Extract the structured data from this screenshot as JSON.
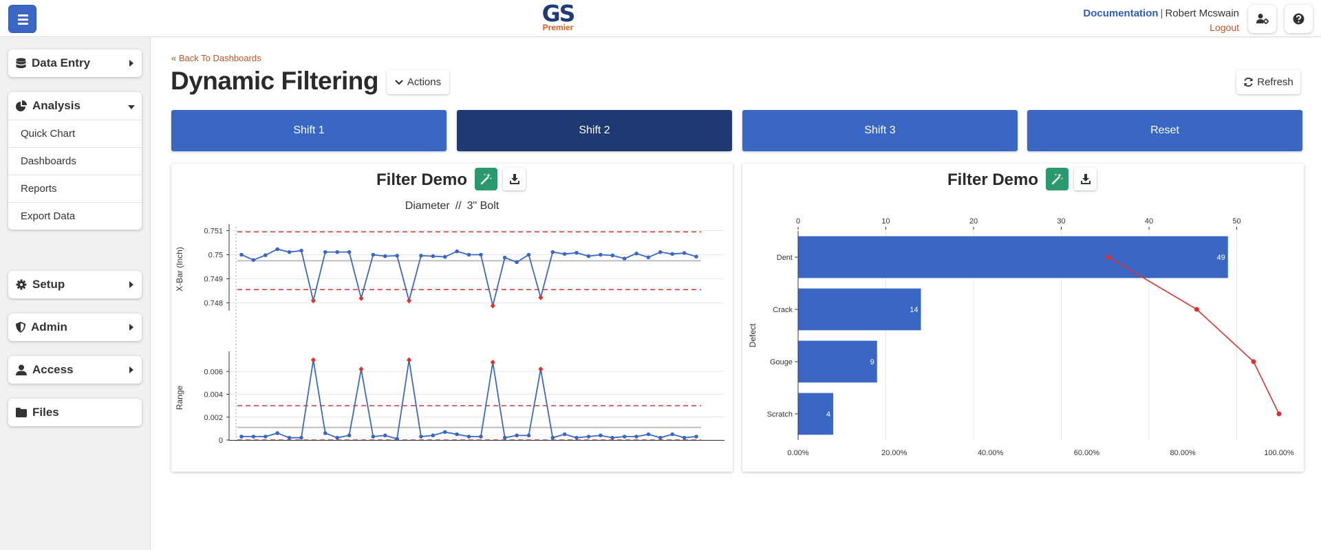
{
  "header": {
    "logo_main": "GS",
    "logo_sub": "Premier",
    "documentation": "Documentation",
    "user_name": "Robert Mcswain",
    "logout": "Logout",
    "icons": [
      "bars-icon",
      "user-gear-icon",
      "question-icon"
    ]
  },
  "sidebar": {
    "data_entry": "Data Entry",
    "analysis": "Analysis",
    "analysis_items": [
      "Quick Chart",
      "Dashboards",
      "Reports",
      "Export Data"
    ],
    "setup": "Setup",
    "admin": "Admin",
    "access": "Access",
    "files": "Files"
  },
  "page": {
    "back_link": "Back To Dashboards",
    "title": "Dynamic Filtering",
    "actions_label": "Actions",
    "refresh_label": "Refresh"
  },
  "filters": {
    "buttons": [
      "Shift 1",
      "Shift 2",
      "Shift 3",
      "Reset"
    ],
    "active": "Shift 2"
  },
  "colors": {
    "primary": "#3a67c4",
    "active_button": "#1f3a73",
    "series": "#3a67c4",
    "limit_line": "#e03030",
    "magic_button": "#2a9a6e"
  },
  "panels": {
    "left_title": "Filter Demo",
    "right_title": "Filter Demo"
  },
  "chart_data": [
    {
      "type": "line",
      "name": "xbar-range-control-chart",
      "subtitle_part1": "Diameter",
      "subtitle_sep": "//",
      "subtitle_part2": "3\" Bolt",
      "xbar": {
        "ylabel": "X-Bar (Inch)",
        "ylim": [
          0.7477,
          0.7511
        ],
        "yticks": [
          0.748,
          0.749,
          0.75,
          0.751
        ],
        "ytick_labels": [
          "0.748",
          "0.749",
          "0.75",
          "0.751"
        ],
        "ucl": 0.75095,
        "lcl": 0.74855,
        "center": 0.74975,
        "values": [
          0.75,
          0.74978,
          0.74998,
          0.75023,
          0.75011,
          0.75017,
          0.74809,
          0.75011,
          0.75011,
          0.75011,
          0.74819,
          0.75,
          0.74994,
          0.74996,
          0.74809,
          0.74996,
          0.74994,
          0.74991,
          0.75014,
          0.75,
          0.75,
          0.74788,
          0.74988,
          0.74969,
          0.75,
          0.74822,
          0.75011,
          0.75003,
          0.75008,
          0.74994,
          0.75,
          0.74997,
          0.74984,
          0.75005,
          0.74989,
          0.75011,
          0.75003,
          0.75007,
          0.74992
        ],
        "out_of_control": [
          6,
          10,
          14,
          21,
          25
        ]
      },
      "range": {
        "ylabel": "Range",
        "ylim": [
          0,
          0.0074
        ],
        "yticks": [
          0,
          0.002,
          0.004,
          0.006
        ],
        "ytick_labels": [
          "0",
          "0.002",
          "0.004",
          "0.006"
        ],
        "ucl": 0.003,
        "lcl": 0,
        "center": 0.0011,
        "values": [
          0.0003,
          0.0003,
          0.0003,
          0.0006,
          0.0002,
          0.0002,
          0.007,
          0.0006,
          0.0002,
          0.0004,
          0.0062,
          0.0003,
          0.0004,
          0.0001,
          0.007,
          0.0003,
          0.0004,
          0.0007,
          0.0005,
          0.0003,
          0.0003,
          0.0068,
          0.0002,
          0.0004,
          0.0004,
          0.0062,
          0.0002,
          0.0005,
          0.0002,
          0.0003,
          0.0004,
          0.0002,
          0.0003,
          0.0003,
          0.0005,
          0.0002,
          0.0005,
          0.0002,
          0.0003
        ],
        "out_of_control": [
          6,
          10,
          14,
          21,
          25
        ]
      }
    },
    {
      "type": "bar",
      "name": "pareto-chart",
      "orientation": "horizontal",
      "ylabel": "Defect",
      "categories": [
        "Dent",
        "Crack",
        "Gouge",
        "Scratch"
      ],
      "values": [
        49,
        14,
        9,
        4
      ],
      "xlim": [
        0,
        52
      ],
      "xticks": [
        0,
        10,
        20,
        30,
        40,
        50
      ],
      "cumulative_percent": [
        64.5,
        82.9,
        94.7,
        100.0
      ],
      "percent_ticks": [
        "0.00%",
        "20.00%",
        "40.00%",
        "60.00%",
        "80.00%",
        "100.00%"
      ]
    }
  ]
}
